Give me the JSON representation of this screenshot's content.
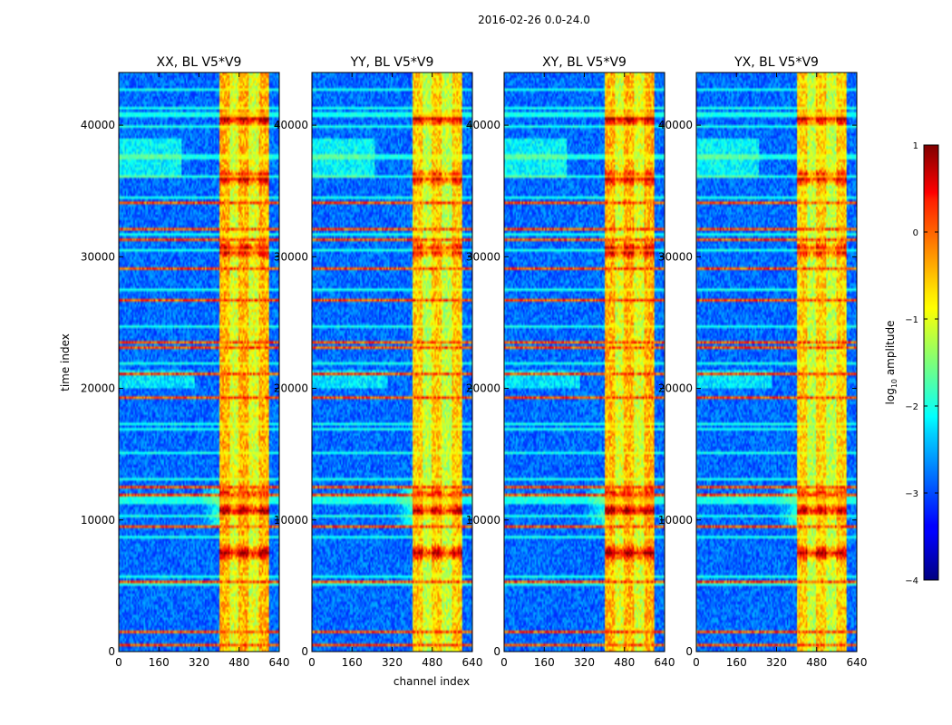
{
  "figure": {
    "suptitle": "2016-02-26 0.0-24.0",
    "ylabel": "time index",
    "xlabel": "channel index"
  },
  "chart_data": {
    "type": "heatmap",
    "panels": [
      {
        "title": "XX, BL V5*V9"
      },
      {
        "title": "YY, BL V5*V9"
      },
      {
        "title": "XY, BL V5*V9"
      },
      {
        "title": "YX, BL V5*V9"
      }
    ],
    "x_range": [
      0,
      640
    ],
    "y_range": [
      0,
      44000
    ],
    "x_ticks": [
      0,
      160,
      320,
      480,
      640
    ],
    "y_ticks": [
      0,
      10000,
      20000,
      30000,
      40000
    ],
    "x_tick_labels": [
      "0",
      "160",
      "320",
      "480",
      "640"
    ],
    "y_tick_labels": [
      "0",
      "10000",
      "20000",
      "30000",
      "40000"
    ],
    "colorbar": {
      "label": "log10 amplitude",
      "label_main": "log",
      "label_sub": "10",
      "label_rest": " amplitude",
      "range": [
        -4,
        1
      ],
      "ticks": [
        1,
        0,
        -1,
        -2,
        -3,
        -4
      ],
      "tick_labels": [
        "1",
        "0",
        "−1",
        "−2",
        "−3",
        "−4"
      ]
    },
    "features": {
      "strong_band_channels": [
        400,
        600
      ],
      "bright_time_rows": [
        40500,
        36000,
        30500,
        11800,
        10700,
        7500
      ]
    }
  }
}
